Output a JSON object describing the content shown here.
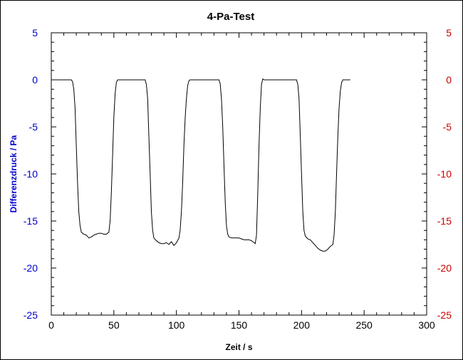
{
  "chart_data": {
    "type": "line",
    "title": "4-Pa-Test",
    "xlabel": "Zeit / s",
    "ylabel": "Differenzdruck / Pa",
    "xlim": [
      0,
      300
    ],
    "ylim": [
      -25,
      5
    ],
    "xticks": [
      0,
      50,
      100,
      150,
      200,
      250,
      300
    ],
    "yticks": [
      5,
      0,
      -5,
      -10,
      -15,
      -20,
      -25
    ],
    "y2ticks": [
      5,
      0,
      -5,
      -10,
      -15,
      -20,
      -25
    ],
    "grid": false,
    "colors": {
      "line": "#000000",
      "left_axis": "#0000cc",
      "right_axis": "#cc0000",
      "axis_title_left": "#0000cc",
      "frame": "#000000"
    },
    "series": [
      {
        "values": [
          [
            0,
            0
          ],
          [
            16,
            0
          ],
          [
            17,
            -0.2
          ],
          [
            18,
            -1
          ],
          [
            19,
            -3
          ],
          [
            20,
            -7
          ],
          [
            21,
            -11
          ],
          [
            22,
            -14
          ],
          [
            23,
            -15.5
          ],
          [
            24,
            -16.2
          ],
          [
            26,
            -16.4
          ],
          [
            28,
            -16.5
          ],
          [
            30,
            -16.8
          ],
          [
            32,
            -16.7
          ],
          [
            34,
            -16.5
          ],
          [
            36,
            -16.4
          ],
          [
            38,
            -16.3
          ],
          [
            40,
            -16.3
          ],
          [
            42,
            -16.4
          ],
          [
            44,
            -16.4
          ],
          [
            46,
            -16.2
          ],
          [
            47,
            -15
          ],
          [
            48,
            -12
          ],
          [
            49,
            -8
          ],
          [
            50,
            -4
          ],
          [
            51,
            -1.5
          ],
          [
            52,
            -0.3
          ],
          [
            53,
            0
          ],
          [
            75,
            0
          ],
          [
            76,
            -0.5
          ],
          [
            77,
            -2
          ],
          [
            78,
            -6
          ],
          [
            79,
            -10
          ],
          [
            80,
            -14
          ],
          [
            81,
            -16
          ],
          [
            82,
            -16.8
          ],
          [
            84,
            -17.1
          ],
          [
            86,
            -17.3
          ],
          [
            88,
            -17.4
          ],
          [
            90,
            -17.4
          ],
          [
            92,
            -17.3
          ],
          [
            94,
            -17.5
          ],
          [
            96,
            -17.2
          ],
          [
            98,
            -17.6
          ],
          [
            100,
            -17.3
          ],
          [
            102,
            -16.8
          ],
          [
            103,
            -16
          ],
          [
            104,
            -14
          ],
          [
            105,
            -11
          ],
          [
            106,
            -7
          ],
          [
            107,
            -4
          ],
          [
            108,
            -2
          ],
          [
            109,
            -0.6
          ],
          [
            110,
            -0.1
          ],
          [
            111,
            0
          ],
          [
            134,
            0
          ],
          [
            135,
            -0.4
          ],
          [
            136,
            -2
          ],
          [
            137,
            -5
          ],
          [
            138,
            -9
          ],
          [
            139,
            -13
          ],
          [
            140,
            -15.5
          ],
          [
            141,
            -16.4
          ],
          [
            142,
            -16.7
          ],
          [
            144,
            -16.8
          ],
          [
            146,
            -16.8
          ],
          [
            148,
            -16.8
          ],
          [
            150,
            -16.8
          ],
          [
            152,
            -16.9
          ],
          [
            154,
            -17
          ],
          [
            156,
            -17
          ],
          [
            158,
            -17
          ],
          [
            160,
            -17.1
          ],
          [
            162,
            -17.3
          ],
          [
            163,
            -17.4
          ],
          [
            164,
            -16.5
          ],
          [
            165,
            -12
          ],
          [
            166,
            -7
          ],
          [
            167,
            -3
          ],
          [
            168,
            -0.5
          ],
          [
            169,
            0.1
          ],
          [
            170,
            0
          ],
          [
            196,
            0
          ],
          [
            197,
            -0.5
          ],
          [
            198,
            -2
          ],
          [
            199,
            -6
          ],
          [
            200,
            -10
          ],
          [
            201,
            -14
          ],
          [
            202,
            -16
          ],
          [
            203,
            -16.6
          ],
          [
            205,
            -16.9
          ],
          [
            207,
            -17
          ],
          [
            209,
            -17.3
          ],
          [
            211,
            -17.6
          ],
          [
            213,
            -17.9
          ],
          [
            215,
            -18.1
          ],
          [
            217,
            -18.2
          ],
          [
            219,
            -18.2
          ],
          [
            221,
            -18.0
          ],
          [
            223,
            -17.7
          ],
          [
            225,
            -17.5
          ],
          [
            226,
            -16.5
          ],
          [
            227,
            -14
          ],
          [
            228,
            -10
          ],
          [
            229,
            -6
          ],
          [
            230,
            -3
          ],
          [
            231,
            -1.2
          ],
          [
            232,
            -0.3
          ],
          [
            233,
            0
          ],
          [
            239,
            0
          ]
        ]
      }
    ]
  }
}
